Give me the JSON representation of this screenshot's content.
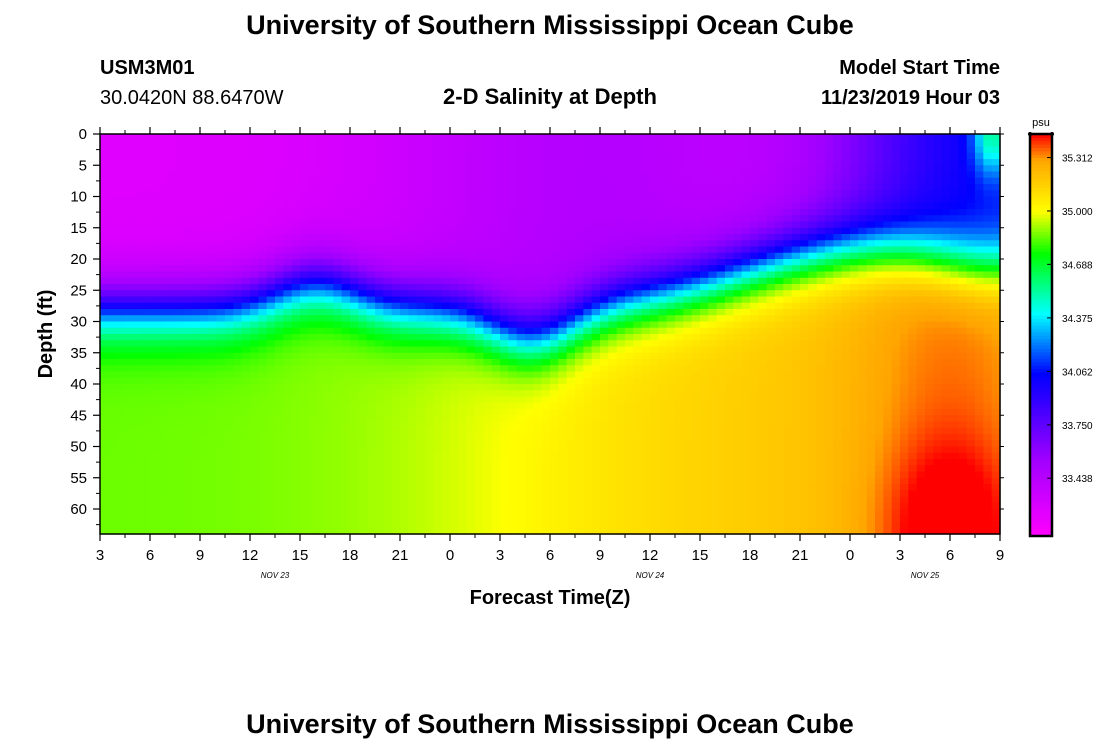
{
  "page": {
    "title": "University of Southern Mississippi Ocean Cube",
    "footer_title": "University of Southern Mississippi Ocean Cube",
    "station_id": "USM3M01",
    "coordinates": "30.0420N 88.6470W",
    "subtitle": "2-D Salinity at Depth",
    "model_start_label": "Model Start Time",
    "model_start_value": "11/23/2019 Hour 03"
  },
  "chart_data": {
    "type": "heatmap",
    "title": "2-D Salinity at Depth",
    "xlabel": "Forecast Time(Z)",
    "ylabel": "Depth (ft)",
    "x_tick_labels": [
      "3",
      "6",
      "9",
      "12",
      "15",
      "18",
      "21",
      "0",
      "3",
      "6",
      "9",
      "12",
      "15",
      "18",
      "21",
      "0",
      "3",
      "6",
      "9"
    ],
    "x_range_hours_from_start": [
      0,
      54
    ],
    "date_labels": [
      {
        "label": "NOV 23",
        "hour": 10.5
      },
      {
        "label": "NOV 24",
        "hour": 33
      },
      {
        "label": "NOV 25",
        "hour": 49.5
      }
    ],
    "y_ticks": [
      0,
      5,
      10,
      15,
      20,
      25,
      30,
      35,
      40,
      45,
      50,
      55,
      60
    ],
    "ylim": [
      0,
      64
    ],
    "y_inverted": true,
    "colorbar": {
      "unit": "psu",
      "range": [
        33.1,
        35.45
      ],
      "tick_values": [
        33.438,
        33.75,
        34.062,
        34.375,
        34.688,
        35.0,
        35.312
      ],
      "tick_labels": [
        "33.438",
        "33.750",
        "34.062",
        "34.375",
        "34.688",
        "35.000",
        "35.312"
      ],
      "stops": [
        {
          "v": 33.1,
          "c": "#ff00ff"
        },
        {
          "v": 33.55,
          "c": "#a000ff"
        },
        {
          "v": 34.05,
          "c": "#0000ff"
        },
        {
          "v": 34.4,
          "c": "#00ffff"
        },
        {
          "v": 34.75,
          "c": "#00ff00"
        },
        {
          "v": 35.0,
          "c": "#ffff00"
        },
        {
          "v": 35.3,
          "c": "#ffa500"
        },
        {
          "v": 35.45,
          "c": "#ff0000"
        }
      ]
    },
    "description": "Salinity field: low salinity (~33.2 psu) near the surface early in the period, a halocline near 20-30 ft that shoals toward the end, and high salinity (~35.4 psu) at depth around Nov 25 hour 3."
  }
}
